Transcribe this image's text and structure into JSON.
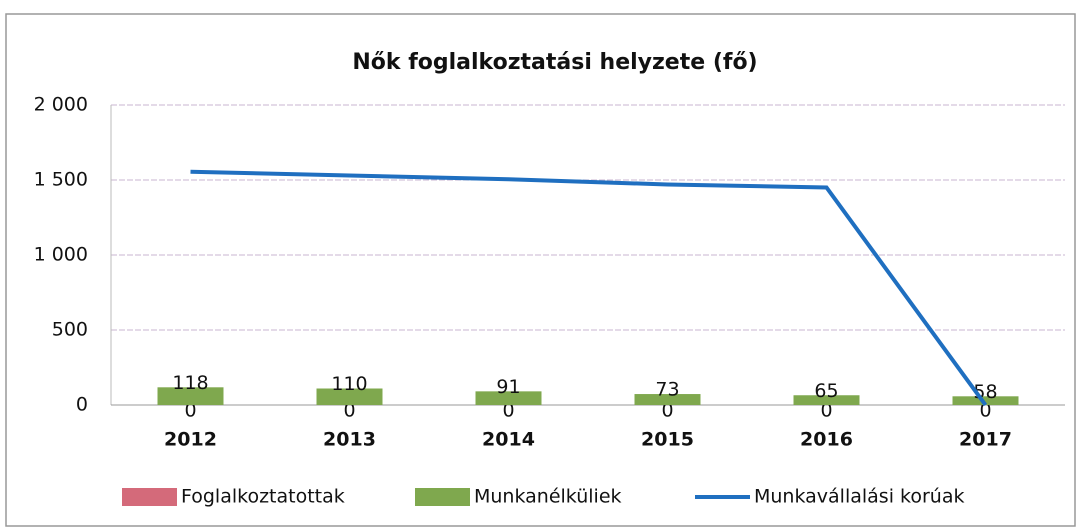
{
  "chart_data": {
    "type": "bar",
    "title": "Nők foglalkoztatási helyzete (fő)",
    "categories": [
      "2012",
      "2013",
      "2014",
      "2015",
      "2016",
      "2017"
    ],
    "series": [
      {
        "name": "Foglalkoztatottak",
        "type": "bar",
        "color": "#d46a7a",
        "values": [
          0,
          0,
          0,
          0,
          0,
          0
        ]
      },
      {
        "name": "Munkanélküliek",
        "type": "bar",
        "color": "#7fa84e",
        "values": [
          118,
          110,
          91,
          73,
          65,
          58
        ]
      },
      {
        "name": "Munkavállalási korúak",
        "type": "line",
        "color": "#1f6fc0",
        "values": [
          1555,
          1530,
          1505,
          1470,
          1450,
          0
        ]
      }
    ],
    "ylim": [
      0,
      2000
    ],
    "yticks": [
      0,
      500,
      {
        "value": 1000,
        "label": "1 000"
      },
      {
        "value": 1500,
        "label": "1 500"
      },
      {
        "value": 2000,
        "label": "2 000"
      }
    ],
    "grid": true,
    "legend": "bottom"
  }
}
